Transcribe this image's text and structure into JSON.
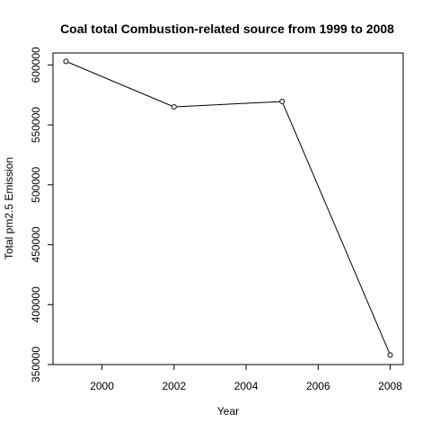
{
  "chart_data": {
    "type": "line",
    "title": "Coal total Combustion-related source from 1999 to 2008",
    "xlabel": "Year",
    "ylabel": "Total pm2.5 Emission",
    "x": [
      1999,
      2002,
      2005,
      2008
    ],
    "y": [
      603000,
      565000,
      569500,
      358000
    ],
    "xlim": [
      1998.64,
      2008.36
    ],
    "ylim": [
      350000,
      610000
    ],
    "xticks": [
      2000,
      2002,
      2004,
      2006,
      2008
    ],
    "xtick_labels": [
      "2000",
      "2002",
      "2004",
      "2006",
      "2008"
    ],
    "yticks": [
      350000,
      400000,
      450000,
      500000,
      550000,
      600000
    ],
    "ytick_labels": [
      "350000",
      "400000",
      "450000",
      "500000",
      "550000",
      "600000"
    ],
    "marker": "open-circle",
    "line_color": "#000000",
    "grid": false,
    "legend": "none"
  }
}
